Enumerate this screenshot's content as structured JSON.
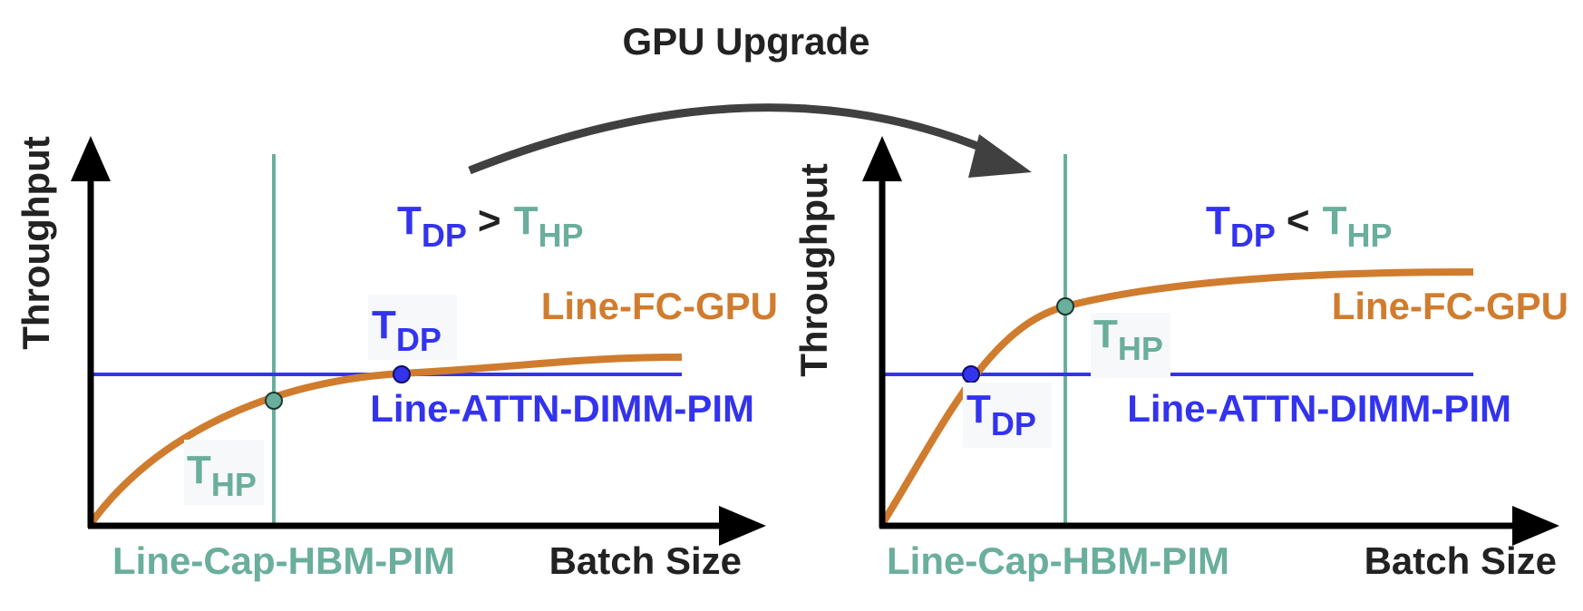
{
  "title": "GPU Upgrade",
  "colors": {
    "fc": "#D07C2E",
    "attn": "#3333EE",
    "cap": "#6AAE9C",
    "axis": "#000000",
    "arrow": "#404040",
    "text": "#222222"
  },
  "left_panel": {
    "y_axis_label": "Throughput",
    "x_axis_label": "Batch Size",
    "cap_label": "Line-Cap-HBM-PIM",
    "fc_label": "Line-FC-GPU",
    "attn_label": "Line-ATTN-DIMM-PIM",
    "tdp_label": {
      "main": "T",
      "sub": "DP"
    },
    "thp_label": {
      "main": "T",
      "sub": "HP"
    },
    "comparison": {
      "lhs_main": "T",
      "lhs_sub": "DP",
      "op": ">",
      "rhs_main": "T",
      "rhs_sub": "HP"
    }
  },
  "right_panel": {
    "y_axis_label": "Throughput",
    "x_axis_label": "Batch Size",
    "cap_label": "Line-Cap-HBM-PIM",
    "fc_label": "Line-FC-GPU",
    "attn_label": "Line-ATTN-DIMM-PIM",
    "tdp_label": {
      "main": "T",
      "sub": "DP"
    },
    "thp_label": {
      "main": "T",
      "sub": "HP"
    },
    "comparison": {
      "lhs_main": "T",
      "lhs_sub": "DP",
      "op": "<",
      "rhs_main": "T",
      "rhs_sub": "HP"
    }
  }
}
